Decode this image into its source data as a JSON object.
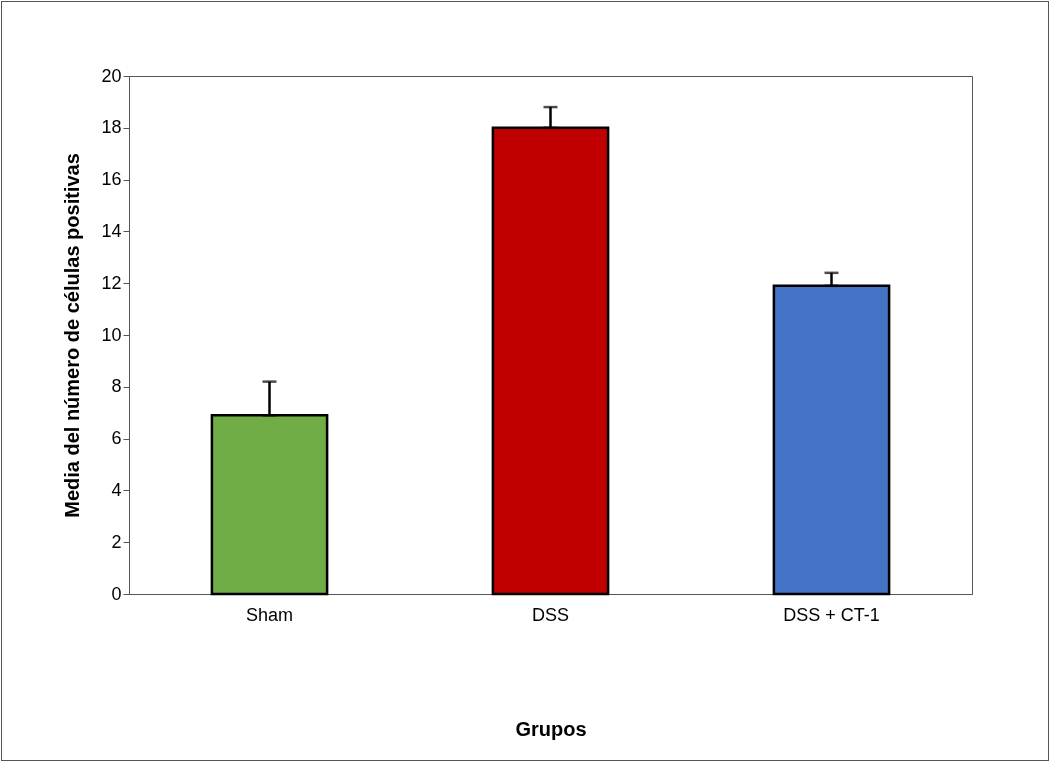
{
  "chart_data": {
    "type": "bar",
    "xlabel": "Grupos",
    "ylabel": "Media del número de células positivas",
    "categories": [
      "Sham",
      "DSS",
      "DSS + CT-1"
    ],
    "values": [
      6.9,
      18.0,
      11.9
    ],
    "colors": [
      "#70ad47",
      "#c00000",
      "#4472c4"
    ],
    "errors": [
      [
        6.9,
        8.2
      ],
      [
        18.0,
        18.8
      ],
      [
        11.9,
        12.4
      ]
    ],
    "ylim": [
      0,
      20
    ],
    "yticks": [
      0,
      2,
      4,
      6,
      8,
      10,
      12,
      14,
      16,
      18,
      20
    ],
    "grid": false,
    "legend": false
  }
}
